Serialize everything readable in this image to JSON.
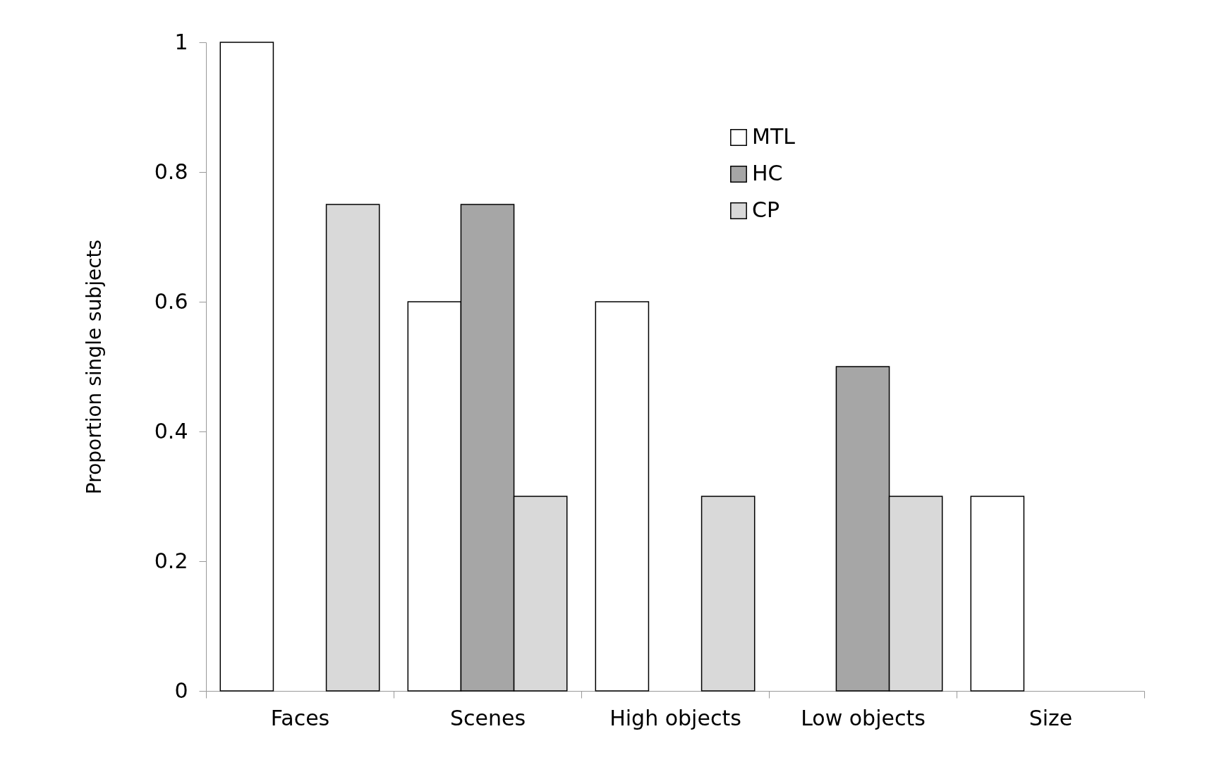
{
  "chart_data": {
    "type": "bar",
    "ylabel": "Proportion single subjects",
    "categories": [
      "Faces",
      "Scenes",
      "High objects",
      "Low objects",
      "Size"
    ],
    "series": [
      {
        "name": "MTL",
        "color": "#ffffff",
        "values": [
          1,
          0.6,
          0.6,
          null,
          0.3
        ]
      },
      {
        "name": "HC",
        "color": "#a6a6a6",
        "values": [
          null,
          0.75,
          null,
          0.5,
          null
        ]
      },
      {
        "name": "CP",
        "color": "#d9d9d9",
        "values": [
          0.75,
          0.3,
          0.3,
          0.3,
          null
        ]
      }
    ],
    "ylim": [
      0,
      1
    ],
    "yticks": [
      0,
      0.2,
      0.4,
      0.6,
      0.8,
      1
    ],
    "grid": false,
    "legend": "top right"
  }
}
